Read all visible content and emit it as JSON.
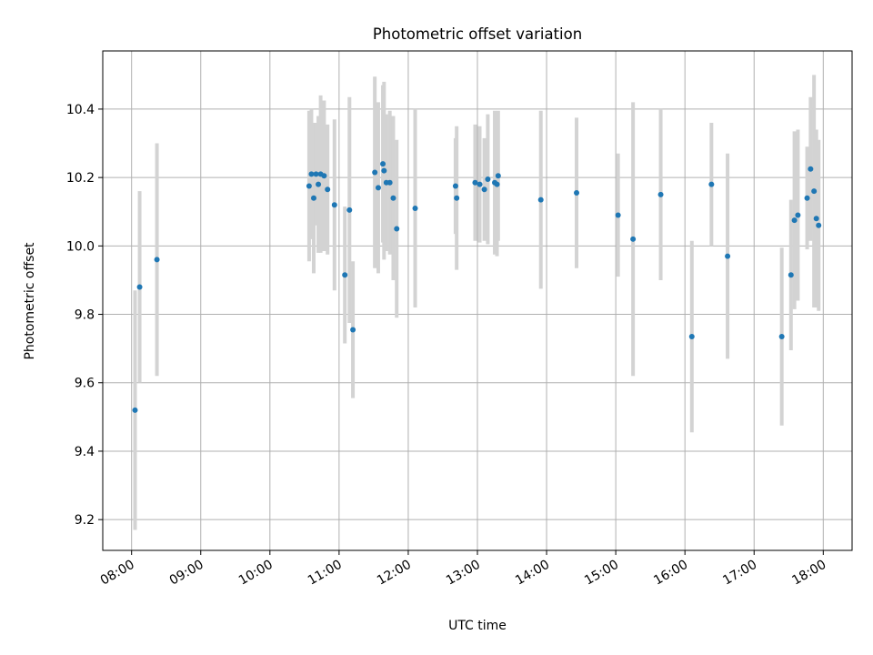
{
  "chart_data": {
    "type": "scatter",
    "title": "Photometric offset variation",
    "xlabel": "UTC time",
    "ylabel": "Photometric offset",
    "x_ticks": [
      "08:00",
      "09:00",
      "10:00",
      "11:00",
      "12:00",
      "13:00",
      "14:00",
      "15:00",
      "16:00",
      "17:00",
      "18:00"
    ],
    "y_ticks": [
      "9.2",
      "9.4",
      "9.6",
      "9.8",
      "10.0",
      "10.2",
      "10.4"
    ],
    "xlim": [
      "07:35",
      "18:25"
    ],
    "ylim": [
      9.11,
      10.57
    ],
    "grid": true,
    "colors": {
      "point": "#1f77b4",
      "errorbar": "#d3d3d3",
      "grid": "#b0b0b0"
    },
    "points": [
      {
        "x": "08:03",
        "y": 9.52,
        "err": 0.35
      },
      {
        "x": "08:07",
        "y": 9.88,
        "err": 0.28
      },
      {
        "x": "08:22",
        "y": 9.96,
        "err": 0.34
      },
      {
        "x": "10:34",
        "y": 10.175,
        "err": 0.22
      },
      {
        "x": "10:36",
        "y": 10.21,
        "err": 0.19
      },
      {
        "x": "10:38",
        "y": 10.14,
        "err": 0.22
      },
      {
        "x": "10:40",
        "y": 10.21,
        "err": 0.15
      },
      {
        "x": "10:42",
        "y": 10.18,
        "err": 0.2
      },
      {
        "x": "10:44",
        "y": 10.21,
        "err": 0.23
      },
      {
        "x": "10:47",
        "y": 10.205,
        "err": 0.22
      },
      {
        "x": "10:50",
        "y": 10.165,
        "err": 0.19
      },
      {
        "x": "10:56",
        "y": 10.12,
        "err": 0.25
      },
      {
        "x": "11:05",
        "y": 9.915,
        "err": 0.2
      },
      {
        "x": "11:09",
        "y": 10.105,
        "err": 0.33
      },
      {
        "x": "11:12",
        "y": 9.755,
        "err": 0.2
      },
      {
        "x": "11:31",
        "y": 10.215,
        "err": 0.28
      },
      {
        "x": "11:34",
        "y": 10.17,
        "err": 0.25
      },
      {
        "x": "11:38",
        "y": 10.24,
        "err": 0.23
      },
      {
        "x": "11:39",
        "y": 10.22,
        "err": 0.26
      },
      {
        "x": "11:41",
        "y": 10.185,
        "err": 0.2
      },
      {
        "x": "11:44",
        "y": 10.185,
        "err": 0.21
      },
      {
        "x": "11:47",
        "y": 10.14,
        "err": 0.24
      },
      {
        "x": "11:50",
        "y": 10.05,
        "err": 0.26
      },
      {
        "x": "12:06",
        "y": 10.11,
        "err": 0.29
      },
      {
        "x": "12:41",
        "y": 10.175,
        "err": 0.14
      },
      {
        "x": "12:42",
        "y": 10.14,
        "err": 0.21
      },
      {
        "x": "12:58",
        "y": 10.185,
        "err": 0.17
      },
      {
        "x": "13:02",
        "y": 10.18,
        "err": 0.17
      },
      {
        "x": "13:06",
        "y": 10.165,
        "err": 0.15
      },
      {
        "x": "13:09",
        "y": 10.195,
        "err": 0.19
      },
      {
        "x": "13:15",
        "y": 10.185,
        "err": 0.21
      },
      {
        "x": "13:17",
        "y": 10.18,
        "err": 0.21
      },
      {
        "x": "13:18",
        "y": 10.205,
        "err": 0.19
      },
      {
        "x": "13:55",
        "y": 10.135,
        "err": 0.26
      },
      {
        "x": "14:26",
        "y": 10.155,
        "err": 0.22
      },
      {
        "x": "15:02",
        "y": 10.09,
        "err": 0.18
      },
      {
        "x": "15:15",
        "y": 10.02,
        "err": 0.4
      },
      {
        "x": "15:39",
        "y": 10.15,
        "err": 0.25
      },
      {
        "x": "16:06",
        "y": 9.735,
        "err": 0.28
      },
      {
        "x": "16:23",
        "y": 10.18,
        "err": 0.18
      },
      {
        "x": "16:37",
        "y": 9.97,
        "err": 0.3
      },
      {
        "x": "17:24",
        "y": 9.735,
        "err": 0.26
      },
      {
        "x": "17:32",
        "y": 9.915,
        "err": 0.22
      },
      {
        "x": "17:35",
        "y": 10.075,
        "err": 0.26
      },
      {
        "x": "17:38",
        "y": 10.09,
        "err": 0.25
      },
      {
        "x": "17:46",
        "y": 10.14,
        "err": 0.15
      },
      {
        "x": "17:49",
        "y": 10.225,
        "err": 0.21
      },
      {
        "x": "17:52",
        "y": 10.16,
        "err": 0.34
      },
      {
        "x": "17:54",
        "y": 10.08,
        "err": 0.26
      },
      {
        "x": "17:56",
        "y": 10.06,
        "err": 0.25
      }
    ]
  }
}
